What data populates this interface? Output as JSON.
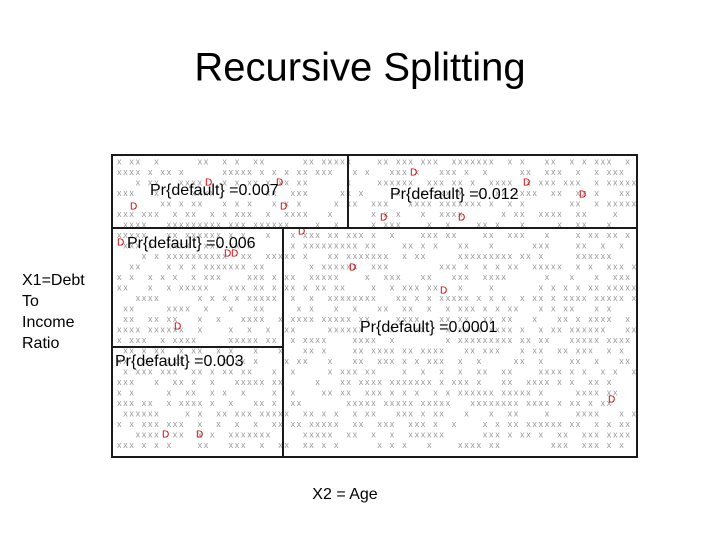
{
  "header": {
    "title": "Recursive Splitting"
  },
  "regions": [
    {
      "label": "Pr{default} =0.007"
    },
    {
      "label": "Pr{default} =0.012"
    },
    {
      "label": "Pr{default} =0.006"
    },
    {
      "label": "Pr{default} =0.0001"
    },
    {
      "label": "Pr{default} =0.003"
    }
  ],
  "axes": {
    "y_label": [
      "X1=Debt",
      "To",
      "Income",
      "Ratio"
    ],
    "x_label": "X2 = Age"
  },
  "markers": {
    "non_default": "x",
    "default": "D"
  }
}
